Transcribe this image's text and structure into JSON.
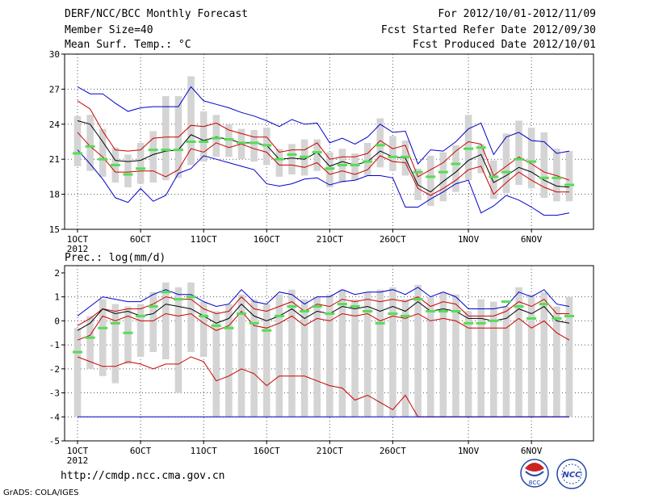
{
  "header": {
    "title": "DERF/NCC/BCC Monthly Forecast",
    "member": "Member Size=40",
    "variable": "Mean Surf. Temp.: °C",
    "period": "For 2012/10/01-2012/11/09",
    "started": "Fcst Started Refer Date 2012/09/30",
    "produced": "Fcst Produced Date 2012/10/01"
  },
  "footer": {
    "url": "http://cmdp.ncc.cma.gov.cn",
    "credit": "GrADS: COLA/IGES"
  },
  "logos": {
    "bcc_text": "BCC",
    "ncc_text": "NCC"
  },
  "colors": {
    "envelope": "#0000cc",
    "spread": "#cc0000",
    "mean": "#000000",
    "box": "#d4d4d4",
    "obs": "#55dd55"
  },
  "chart_data": [
    {
      "type": "line",
      "title": "Mean Surf. Temp.: °C",
      "ylim": [
        15,
        30
      ],
      "yticks": [
        "30",
        "27",
        "24",
        "21",
        "18",
        "15"
      ],
      "ytick_values": [
        30,
        27,
        24,
        21,
        18,
        15
      ],
      "xlim": [
        1,
        40
      ],
      "xticks": [
        "1OCT",
        "6OCT",
        "11OCT",
        "16OCT",
        "21OCT",
        "26OCT",
        "1NOV",
        "6NOV"
      ],
      "xtick_days": [
        1,
        6,
        11,
        16,
        21,
        26,
        32,
        37
      ],
      "year_label": "2012",
      "grid": true,
      "series": [
        {
          "name": "max",
          "color": "#0000cc",
          "values": [
            27.2,
            26.6,
            26.6,
            25.8,
            25.1,
            25.4,
            25.5,
            25.5,
            25.5,
            27.2,
            26.0,
            25.7,
            25.4,
            25.0,
            24.7,
            24.3,
            23.8,
            24.4,
            24.0,
            24.1,
            22.4,
            22.8,
            22.3,
            22.9,
            24.0,
            23.3,
            23.4,
            20.6,
            21.8,
            21.7,
            22.5,
            23.6,
            24.1,
            21.4,
            22.9,
            23.3,
            22.6,
            22.5,
            21.5,
            21.7
          ]
        },
        {
          "name": "upper",
          "color": "#cc0000",
          "values": [
            26.0,
            25.3,
            23.4,
            21.8,
            21.7,
            21.8,
            22.8,
            22.9,
            22.9,
            23.9,
            23.8,
            24.1,
            23.5,
            23.2,
            22.9,
            22.9,
            21.6,
            21.8,
            21.8,
            22.4,
            21.0,
            21.2,
            21.2,
            21.5,
            22.6,
            21.9,
            22.2,
            19.5,
            20.1,
            20.7,
            21.7,
            22.5,
            22.3,
            19.6,
            20.4,
            21.2,
            20.6,
            19.9,
            19.6,
            19.2
          ]
        },
        {
          "name": "mean",
          "color": "#000000",
          "values": [
            24.3,
            24.0,
            22.5,
            20.9,
            20.8,
            20.9,
            21.4,
            21.7,
            21.8,
            23.1,
            22.6,
            22.9,
            22.7,
            22.4,
            22.4,
            22.2,
            21.0,
            21.1,
            21.0,
            21.6,
            20.4,
            20.8,
            20.5,
            20.8,
            21.7,
            21.2,
            21.1,
            18.8,
            18.2,
            19.1,
            19.9,
            20.9,
            21.4,
            19.0,
            19.6,
            20.3,
            19.9,
            19.2,
            18.7,
            18.6
          ]
        },
        {
          "name": "lower",
          "color": "#cc0000",
          "values": [
            23.3,
            22.1,
            21.2,
            19.9,
            19.9,
            20.0,
            20.0,
            19.5,
            20.1,
            21.9,
            21.6,
            22.4,
            22.0,
            22.3,
            21.9,
            21.6,
            20.5,
            20.5,
            20.3,
            20.7,
            19.7,
            20.0,
            19.7,
            20.1,
            21.3,
            20.8,
            20.7,
            18.5,
            17.9,
            18.5,
            19.2,
            20.1,
            20.4,
            18.0,
            19.0,
            19.9,
            19.2,
            18.6,
            18.2,
            18.2
          ]
        },
        {
          "name": "min",
          "color": "#0000cc",
          "values": [
            21.8,
            20.6,
            19.3,
            17.7,
            17.3,
            18.5,
            17.4,
            17.9,
            19.8,
            20.2,
            21.3,
            21.0,
            20.7,
            20.4,
            20.1,
            18.9,
            18.7,
            18.9,
            19.3,
            19.4,
            18.8,
            19.1,
            19.2,
            19.6,
            19.6,
            19.4,
            16.9,
            16.9,
            17.6,
            18.2,
            18.9,
            19.2,
            16.4,
            17.0,
            17.9,
            17.5,
            16.9,
            16.2,
            16.2,
            16.4
          ]
        }
      ],
      "boxes": {
        "low": [
          20.4,
          20.0,
          19.5,
          19.0,
          18.6,
          18.9,
          19.0,
          19.2,
          19.4,
          20.5,
          20.8,
          21.2,
          21.2,
          21.0,
          20.8,
          20.5,
          19.5,
          19.7,
          19.6,
          20.0,
          18.6,
          19.0,
          19.2,
          19.6,
          20.3,
          20.0,
          19.6,
          17.5,
          17.0,
          17.4,
          18.2,
          19.2,
          19.8,
          17.6,
          18.1,
          18.8,
          18.5,
          17.7,
          17.4,
          17.4
        ],
        "high": [
          24.7,
          24.8,
          23.6,
          22.0,
          21.4,
          22.4,
          23.4,
          26.4,
          26.4,
          28.1,
          25.1,
          24.8,
          24.0,
          23.6,
          23.5,
          23.7,
          21.9,
          22.3,
          22.7,
          22.7,
          21.6,
          21.9,
          21.5,
          22.4,
          24.5,
          23.0,
          22.6,
          20.2,
          21.3,
          21.6,
          22.2,
          24.8,
          22.3,
          20.9,
          23.2,
          24.3,
          23.7,
          23.3,
          21.9,
          21.7
        ]
      },
      "observed": [
        21.5,
        22.1,
        21.0,
        20.5,
        19.7,
        20.2,
        21.8,
        21.8,
        21.8,
        22.5,
        22.5,
        22.8,
        22.7,
        22.4,
        22.4,
        22.2,
        21.0,
        21.4,
        21.2,
        21.6,
        20.2,
        20.5,
        20.5,
        20.8,
        22.2,
        21.2,
        21.2,
        19.9,
        19.5,
        19.9,
        20.6,
        21.9,
        22.0,
        19.5,
        19.9,
        21.0,
        20.8,
        19.4,
        19.4,
        18.8
      ]
    },
    {
      "type": "line",
      "title": "Prec.: log(mm/d)",
      "ylim": [
        -5,
        2.3
      ],
      "yticks": [
        "2",
        "1",
        "0",
        "-1",
        "-2",
        "-3",
        "-4",
        "-5"
      ],
      "ytick_values": [
        2,
        1,
        0,
        -1,
        -2,
        -3,
        -4,
        -5
      ],
      "xlim": [
        1,
        40
      ],
      "xticks": [
        "1OCT",
        "6OCT",
        "11OCT",
        "16OCT",
        "21OCT",
        "26OCT",
        "1NOV",
        "6NOV"
      ],
      "xtick_days": [
        1,
        6,
        11,
        16,
        21,
        26,
        32,
        37
      ],
      "year_label": "2012",
      "grid": true,
      "series": [
        {
          "name": "max",
          "color": "#0000cc",
          "values": [
            0.2,
            0.6,
            1.0,
            0.9,
            0.8,
            0.8,
            1.1,
            1.3,
            1.1,
            1.1,
            0.8,
            0.6,
            0.7,
            1.3,
            0.8,
            0.7,
            1.2,
            1.1,
            0.7,
            1.0,
            1.0,
            1.3,
            1.1,
            1.2,
            1.2,
            1.3,
            1.1,
            1.4,
            1.0,
            1.2,
            1.0,
            0.5,
            0.5,
            0.5,
            0.6,
            1.2,
            1.0,
            1.3,
            0.7,
            0.6
          ]
        },
        {
          "name": "upper",
          "color": "#cc0000",
          "values": [
            -0.2,
            0.1,
            0.5,
            0.4,
            0.5,
            0.5,
            0.7,
            1.0,
            0.9,
            0.9,
            0.5,
            0.3,
            0.4,
            1.0,
            0.5,
            0.4,
            0.6,
            0.8,
            0.4,
            0.7,
            0.6,
            0.9,
            0.8,
            0.9,
            0.8,
            0.9,
            0.8,
            1.0,
            0.6,
            0.8,
            0.7,
            0.2,
            0.2,
            0.2,
            0.4,
            0.8,
            0.6,
            0.9,
            0.3,
            0.3
          ]
        },
        {
          "name": "mean",
          "color": "#000000",
          "values": [
            -0.4,
            -0.1,
            0.5,
            0.3,
            0.4,
            0.2,
            0.3,
            0.7,
            0.6,
            0.5,
            0.2,
            -0.1,
            0.1,
            0.7,
            0.2,
            0.0,
            0.2,
            0.5,
            0.1,
            0.4,
            0.3,
            0.6,
            0.5,
            0.6,
            0.4,
            0.6,
            0.4,
            0.8,
            0.4,
            0.5,
            0.4,
            0.1,
            0.1,
            0.0,
            0.1,
            0.5,
            0.3,
            0.6,
            0.0,
            -0.1
          ]
        },
        {
          "name": "lower",
          "color": "#cc0000",
          "values": [
            -0.8,
            -0.6,
            0.2,
            0.0,
            0.2,
            0.0,
            0.0,
            0.3,
            0.2,
            0.3,
            -0.1,
            -0.4,
            -0.2,
            0.4,
            -0.2,
            -0.3,
            -0.1,
            0.2,
            -0.2,
            0.1,
            0.0,
            0.3,
            0.2,
            0.3,
            0.0,
            0.2,
            0.1,
            0.3,
            0.0,
            0.1,
            0.0,
            -0.3,
            -0.3,
            -0.3,
            -0.3,
            0.1,
            -0.3,
            0.0,
            -0.5,
            -0.8
          ]
        },
        {
          "name": "min",
          "color": "#cc0000",
          "values": [
            -1.5,
            -1.7,
            -1.9,
            -1.9,
            -1.7,
            -1.8,
            -2.0,
            -1.8,
            -1.8,
            -1.5,
            -1.7,
            -2.5,
            -2.3,
            -2.0,
            -2.2,
            -2.7,
            -2.3,
            -2.3,
            -2.3,
            -2.5,
            -2.7,
            -2.8,
            -3.3,
            -3.1,
            -3.4,
            -3.7,
            -3.1,
            -4.0,
            -4.0,
            -4.0,
            -4.0,
            -4.0,
            -4.0,
            -4.0,
            -4.0,
            -4.0,
            -4.0,
            -4.0,
            -4.0,
            -4.0
          ]
        },
        {
          "name": "floor",
          "color": "#0000cc",
          "values": [
            -4.0,
            -4.0,
            -4.0,
            -4.0,
            -4.0,
            -4.0,
            -4.0,
            -4.0,
            -4.0,
            -4.0,
            -4.0,
            -4.0,
            -4.0,
            -4.0,
            -4.0,
            -4.0,
            -4.0,
            -4.0,
            -4.0,
            -4.0,
            -4.0,
            -4.0,
            -4.0,
            -4.0,
            -4.0,
            -4.0,
            -4.0,
            -4.0,
            -4.0,
            -4.0,
            -4.0,
            -4.0,
            -4.0,
            -4.0,
            -4.0,
            -4.0,
            -4.0,
            -4.0,
            -4.0,
            -4.0
          ]
        }
      ],
      "boxes": {
        "low": [
          -4.0,
          -2.0,
          -2.3,
          -2.6,
          -1.8,
          -1.5,
          -1.3,
          -1.6,
          -3.0,
          -1.3,
          -1.5,
          -4.0,
          -4.0,
          -4.0,
          -4.0,
          -4.0,
          -4.0,
          -4.0,
          -4.0,
          -4.0,
          -4.0,
          -4.0,
          -4.0,
          -4.0,
          -4.0,
          -4.0,
          -4.0,
          -4.0,
          -4.0,
          -4.0,
          -4.0,
          -4.0,
          -4.0,
          -4.0,
          -4.0,
          -4.0,
          -4.0,
          -4.0,
          -4.0,
          -4.0
        ],
        "high": [
          -0.3,
          0.2,
          0.9,
          0.7,
          0.6,
          0.7,
          1.2,
          1.6,
          1.4,
          1.6,
          0.8,
          0.4,
          0.7,
          1.1,
          0.9,
          0.7,
          1.1,
          1.3,
          0.9,
          1.0,
          1.1,
          1.3,
          0.9,
          1.2,
          1.3,
          1.4,
          0.9,
          1.5,
          1.0,
          1.2,
          1.1,
          0.4,
          0.9,
          0.8,
          0.6,
          1.4,
          1.1,
          1.2,
          0.6,
          1.0
        ]
      },
      "observed": [
        -1.3,
        -0.7,
        -0.3,
        -0.1,
        -0.5,
        0.2,
        0.6,
        1.2,
        0.9,
        1.0,
        0.2,
        -0.2,
        -0.3,
        0.3,
        -0.1,
        -0.4,
        0.2,
        0.6,
        0.4,
        0.6,
        0.3,
        0.7,
        0.6,
        0.4,
        -0.1,
        0.3,
        0.2,
        0.9,
        0.4,
        0.4,
        0.4,
        -0.1,
        -0.1,
        0.0,
        0.8,
        0.6,
        0.1,
        0.7,
        0.1,
        0.2
      ]
    }
  ]
}
